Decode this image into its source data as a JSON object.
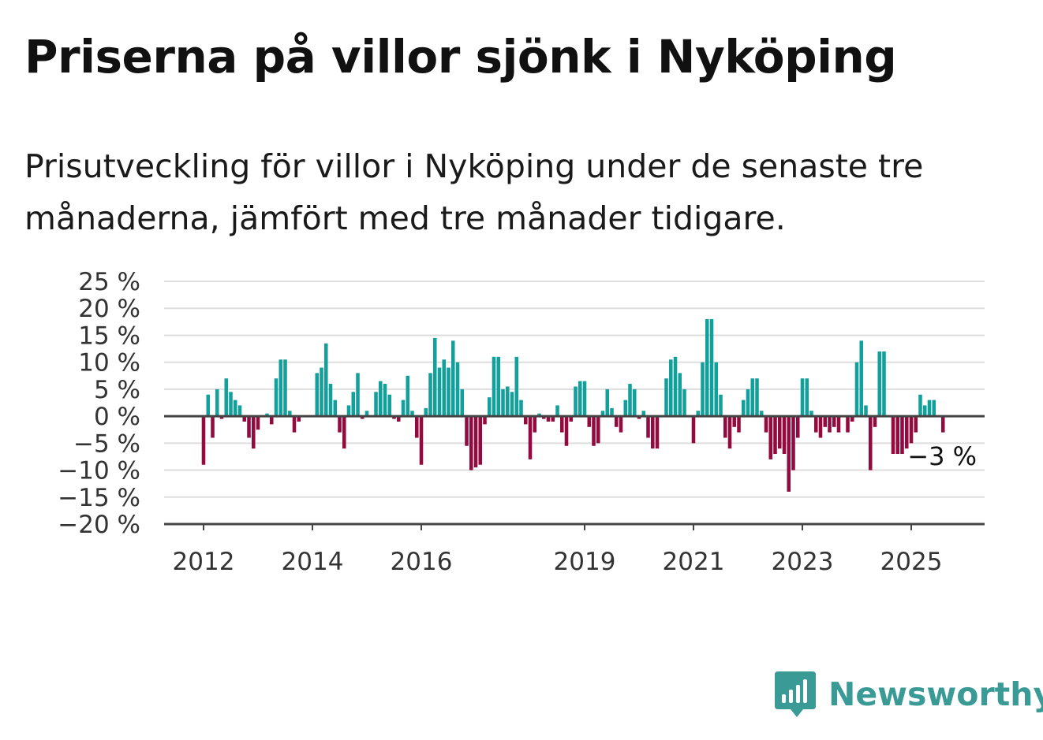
{
  "title": "Priserna på villor sjönk i Nyköping",
  "subtitle": "Prisutveckling för villor i Nyköping under de senaste tre månaderna, jämfört med tre månader tidigare.",
  "brand": {
    "name": "Newsworthy",
    "color": "#3a9a96"
  },
  "colors": {
    "positive": "#12a09c",
    "negative": "#930a3e",
    "grid": "#dddddd",
    "axis": "#444444"
  },
  "chart_data": {
    "type": "bar",
    "ylabel": "",
    "xlabel": "",
    "ylim": [
      -20,
      25
    ],
    "yticks": [
      25,
      20,
      15,
      10,
      5,
      0,
      -5,
      -10,
      -15,
      -20
    ],
    "ytick_labels": [
      "25 %",
      "20 %",
      "15 %",
      "10 %",
      "5 %",
      "0 %",
      "−5 %",
      "−10 %",
      "−15 %",
      "−20 %"
    ],
    "xticks": [
      {
        "label": "2012",
        "month": "2012-01"
      },
      {
        "label": "2014",
        "month": "2014-01"
      },
      {
        "label": "2016",
        "month": "2016-01"
      },
      {
        "label": "2019",
        "month": "2019-01"
      },
      {
        "label": "2021",
        "month": "2021-01"
      },
      {
        "label": "2023",
        "month": "2023-01"
      },
      {
        "label": "2025",
        "month": "2025-01"
      }
    ],
    "start_month": "2012-01",
    "values": [
      -9,
      4,
      -4,
      5,
      -0.5,
      7,
      4.5,
      3,
      2,
      -1,
      -4,
      -6,
      -2.5,
      0,
      0.5,
      -1.5,
      7,
      10.5,
      10.5,
      1,
      -3,
      -1,
      0,
      0,
      0,
      8,
      9,
      13.5,
      6,
      3,
      -3,
      -6,
      2,
      4.5,
      8,
      -0.5,
      1,
      0,
      4.5,
      6.5,
      6,
      4,
      -0.5,
      -1,
      3,
      7.5,
      1,
      -4,
      -9,
      1.5,
      8,
      14.5,
      9,
      10.5,
      9,
      14,
      10,
      5,
      -5.5,
      -10,
      -9.5,
      -9,
      -1.5,
      3.5,
      11,
      11,
      5,
      5.5,
      4.5,
      11,
      3,
      -1.5,
      -8,
      -3,
      0.5,
      -0.5,
      -1,
      -1,
      2,
      -3,
      -5.5,
      -1,
      5.5,
      6.5,
      6.5,
      -2,
      -5.5,
      -5,
      1,
      5,
      1.5,
      -2,
      -3,
      3,
      6,
      5,
      -0.5,
      1,
      -4,
      -6,
      -6,
      0,
      7,
      10.5,
      11,
      8,
      5,
      0,
      -5,
      1,
      10,
      18,
      18,
      10,
      4,
      -4,
      -6,
      -2,
      -3,
      3,
      5,
      7,
      7,
      1,
      -3,
      -8,
      -7,
      -6,
      -7,
      -14,
      -10,
      -4,
      7,
      7,
      1,
      -3,
      -4,
      -2,
      -3,
      -2,
      -3,
      0,
      -3,
      -1,
      10,
      14,
      2,
      -10,
      -2,
      12,
      12,
      0,
      -7,
      -7,
      -7,
      -6,
      -5,
      -3,
      4,
      2,
      3,
      3,
      0,
      -3
    ],
    "annotations": [
      {
        "text": "−3 %",
        "value": -3
      }
    ]
  }
}
